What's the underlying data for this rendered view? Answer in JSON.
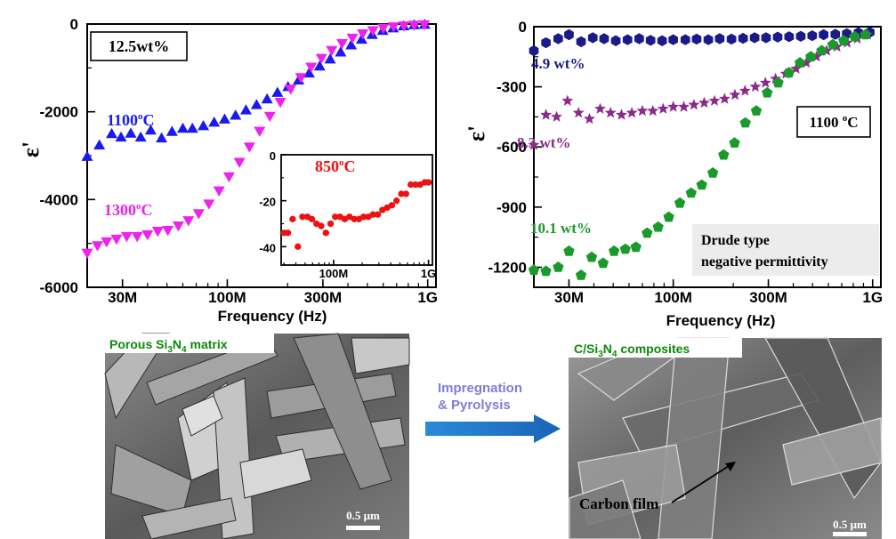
{
  "chart_data": [
    {
      "type": "scatter",
      "xlabel": "Frequency (Hz)",
      "ylabel": "ε'",
      "xscale": "log",
      "xlim": [
        20000000,
        1100000000
      ],
      "ylim": [
        -6000,
        0
      ],
      "x_ticks": [
        {
          "value": 30000000,
          "label": "30M"
        },
        {
          "value": 100000000,
          "label": "100M"
        },
        {
          "value": 300000000,
          "label": "300M"
        },
        {
          "value": 1000000000,
          "label": "1G"
        }
      ],
      "y_ticks": [
        "0",
        "-2000",
        "-4000",
        "-6000"
      ],
      "box_label": "12.5wt%",
      "series": [
        {
          "name": "1100°C",
          "label_main": "1100",
          "label_sup": "o",
          "label_tail": "C",
          "color": "#1a1aee",
          "marker": "triangle-up",
          "x": [
            20000000,
            23000000,
            26500000,
            29500000,
            33000000,
            37000000,
            41500000,
            47000000,
            53000000,
            60000000,
            67000000,
            76000000,
            86000000,
            97000000,
            110000000,
            124000000,
            140000000,
            158000000,
            178000000,
            201000000,
            227000000,
            256000000,
            289000000,
            326000000,
            368000000,
            415000000,
            468000000,
            528000000,
            596000000,
            672000000,
            758000000,
            855000000,
            965000000
          ],
          "y": [
            -3020,
            -2760,
            -2500,
            -2580,
            -2490,
            -2580,
            -2420,
            -2600,
            -2450,
            -2380,
            -2380,
            -2320,
            -2240,
            -2170,
            -2080,
            -1960,
            -1840,
            -1710,
            -1560,
            -1430,
            -1280,
            -1120,
            -960,
            -800,
            -640,
            -480,
            -350,
            -240,
            -150,
            -90,
            -45,
            -20,
            -10
          ]
        },
        {
          "name": "1300°C",
          "label_main": "1300",
          "label_sup": "o",
          "label_tail": "C",
          "color": "#ee22ee",
          "marker": "triangle-down",
          "x": [
            20000000,
            22500000,
            25000000,
            28000000,
            31500000,
            35500000,
            40000000,
            45000000,
            50500000,
            57000000,
            64000000,
            72000000,
            81000000,
            91000000,
            102000000,
            115000000,
            129000000,
            145000000,
            163000000,
            184000000,
            207000000,
            233000000,
            262000000,
            295000000,
            332000000,
            374000000,
            421000000,
            474000000,
            533000000,
            600000000,
            675000000,
            760000000,
            855000000,
            962000000
          ],
          "y": [
            -5220,
            -5050,
            -4960,
            -4900,
            -4840,
            -4840,
            -4800,
            -4720,
            -4700,
            -4600,
            -4480,
            -4320,
            -4100,
            -3800,
            -3480,
            -3150,
            -2800,
            -2440,
            -2100,
            -1780,
            -1480,
            -1220,
            -980,
            -780,
            -600,
            -440,
            -320,
            -220,
            -150,
            -95,
            -60,
            -40,
            -25,
            -15
          ]
        }
      ],
      "inset": {
        "type": "scatter",
        "xscale": "log",
        "xlim": [
          28000000,
          1100000000
        ],
        "ylim": [
          -48,
          0
        ],
        "x_ticks": [
          {
            "value": 100000000,
            "label": "100M"
          },
          {
            "value": 1000000000,
            "label": "1G"
          }
        ],
        "y_ticks": [
          "0",
          "-20",
          "-40"
        ],
        "series": [
          {
            "name": "850°C",
            "label_main": "850",
            "label_sup": "o",
            "label_tail": "C",
            "color": "#ee1111",
            "marker": "circle",
            "x": [
              30000000,
              33000000,
              37000000,
              42000000,
              47000000,
              53000000,
              59000000,
              66000000,
              74000000,
              83000000,
              93000000,
              104000000,
              117000000,
              131000000,
              147000000,
              165000000,
              185000000,
              207000000,
              232000000,
              260000000,
              292000000,
              327000000,
              367000000,
              411000000,
              461000000,
              517000000,
              579000000,
              650000000,
              728000000,
              817000000,
              916000000,
              1000000000
            ],
            "y": [
              -34,
              -34,
              -28,
              -40,
              -27,
              -27,
              -28,
              -30,
              -31,
              -34,
              -30,
              -27,
              -27,
              -28,
              -27,
              -28,
              -28,
              -27,
              -27,
              -26,
              -26,
              -24,
              -23,
              -22,
              -20,
              -17,
              -17,
              -13,
              -13,
              -13,
              -12,
              -12
            ]
          }
        ]
      }
    },
    {
      "type": "scatter",
      "xlabel": "Frequency (Hz)",
      "ylabel": "ε'",
      "xscale": "log",
      "xlim": [
        20000000,
        1100000000
      ],
      "ylim": [
        -1300,
        0
      ],
      "x_ticks": [
        {
          "value": 30000000,
          "label": "30M"
        },
        {
          "value": 100000000,
          "label": "100M"
        },
        {
          "value": 300000000,
          "label": "300M"
        },
        {
          "value": 1000000000,
          "label": "1G"
        }
      ],
      "y_ticks": [
        "0",
        "-300",
        "-600",
        "-900",
        "-1200"
      ],
      "box_label_main": "1100 ",
      "box_label_sup": "o",
      "box_label_tail": "C",
      "note_lines": [
        "Drude type",
        "negative permittivity"
      ],
      "series": [
        {
          "name": "4.9 wt%",
          "color": "#1a1a8a",
          "marker": "hexagon",
          "x": [
            20000000,
            23000000,
            26500000,
            30000000,
            34500000,
            39500000,
            45000000,
            51500000,
            59000000,
            67500000,
            77000000,
            88000000,
            100000000,
            115000000,
            131000000,
            150000000,
            171000000,
            196000000,
            224000000,
            256000000,
            292000000,
            334000000,
            381000000,
            436000000,
            498000000,
            568000000,
            650000000,
            742000000,
            848000000,
            968000000
          ],
          "y": [
            -120,
            -80,
            -60,
            -40,
            -75,
            -55,
            -60,
            -70,
            -65,
            -60,
            -68,
            -70,
            -65,
            -65,
            -62,
            -65,
            -60,
            -62,
            -58,
            -55,
            -55,
            -52,
            -50,
            -48,
            -45,
            -40,
            -38,
            -35,
            -30,
            -28
          ]
        },
        {
          "name": "8.3 wt%",
          "color": "#8a2a8a",
          "marker": "star",
          "x": [
            20000000,
            23000000,
            26000000,
            29500000,
            33500000,
            38000000,
            43000000,
            48500000,
            55000000,
            62000000,
            70000000,
            79000000,
            89000000,
            100000000,
            113000000,
            127000000,
            143000000,
            161000000,
            181000000,
            204000000,
            229000000,
            258000000,
            290000000,
            326000000,
            367000000,
            413000000,
            465000000,
            523000000,
            588000000,
            662000000,
            745000000,
            838000000,
            942000000
          ],
          "y": [
            -590,
            -440,
            -450,
            -370,
            -430,
            -460,
            -410,
            -430,
            -440,
            -430,
            -420,
            -420,
            -410,
            -400,
            -400,
            -390,
            -380,
            -370,
            -360,
            -340,
            -320,
            -300,
            -280,
            -260,
            -235,
            -210,
            -180,
            -150,
            -120,
            -100,
            -80,
            -60,
            -40
          ]
        },
        {
          "name": "10.1 wt%",
          "color": "#1a9a2a",
          "marker": "pentagon",
          "x": [
            20000000,
            23000000,
            26500000,
            30000000,
            34500000,
            39000000,
            44500000,
            50500000,
            57500000,
            65000000,
            74000000,
            84000000,
            95000000,
            108000000,
            123000000,
            139000000,
            158000000,
            179000000,
            203000000,
            230000000,
            261000000,
            296000000,
            336000000,
            381000000,
            432000000,
            490000000,
            556000000,
            631000000,
            716000000,
            812000000,
            921000000
          ],
          "y": [
            -1215,
            -1220,
            -1200,
            -1120,
            -1240,
            -1150,
            -1180,
            -1120,
            -1110,
            -1100,
            -1030,
            -1000,
            -950,
            -880,
            -830,
            -790,
            -730,
            -640,
            -580,
            -480,
            -420,
            -330,
            -280,
            -230,
            -180,
            -150,
            -120,
            -90,
            -70,
            -50,
            -40
          ]
        }
      ]
    }
  ],
  "sem_left": {
    "label_main": "Porous Si",
    "label_sub1": "3",
    "label_mid": "N",
    "label_sub2": "4",
    "label_tail": " matrix",
    "scale_text": "0.5 μm"
  },
  "sem_right": {
    "label_main": "C/Si",
    "label_sub1": "3",
    "label_mid": "N",
    "label_sub2": "4",
    "label_tail": " composites",
    "annotation": "Carbon film",
    "scale_text": "0.5 μm"
  },
  "process_arrow": {
    "line1": "Impregnation",
    "line2": "& Pyrolysis",
    "color": "#1a73c8"
  }
}
